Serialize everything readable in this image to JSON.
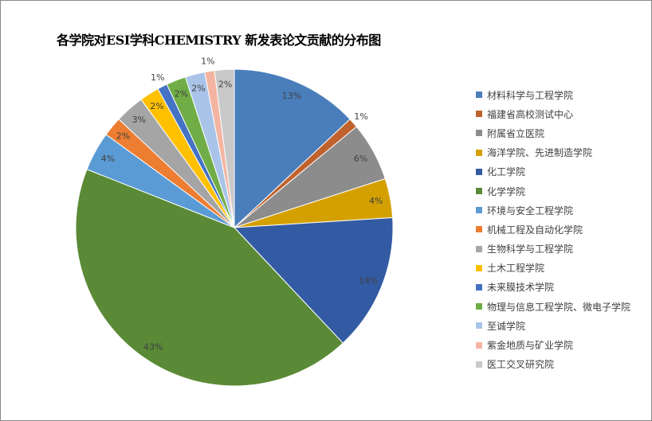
{
  "chart_data": {
    "type": "pie",
    "title": "各学院对ESI学科CHEMISTRY 新发表论文贡献的分布图",
    "legend_position": "right",
    "start_angle": "12 o'clock, clockwise",
    "slices": [
      {
        "label": "材料科学与工程学院",
        "value": 13,
        "display": "13%",
        "color": "#4A7EBB"
      },
      {
        "label": "福建省高校测试中心",
        "value": 1,
        "display": "1%",
        "color": "#C0622D"
      },
      {
        "label": "附属省立医院",
        "value": 6,
        "display": "6%",
        "color": "#8C8C8C"
      },
      {
        "label": "海洋学院、先进制造学院",
        "value": 4,
        "display": "4%",
        "color": "#D4A000"
      },
      {
        "label": "化工学院",
        "value": 14,
        "display": "14%",
        "color": "#335BA3"
      },
      {
        "label": "化学学院",
        "value": 43,
        "display": "43%",
        "color": "#5A8A36"
      },
      {
        "label": "环境与安全工程学院",
        "value": 4,
        "display": "4%",
        "color": "#5B9BD5"
      },
      {
        "label": "机械工程及自动化学院",
        "value": 2,
        "display": "2%",
        "color": "#ED7D31"
      },
      {
        "label": "生物科学与工程学院",
        "value": 3,
        "display": "3%",
        "color": "#A5A5A5"
      },
      {
        "label": "土木工程学院",
        "value": 2,
        "display": "2%",
        "color": "#FFC000"
      },
      {
        "label": "未来膜技术学院",
        "value": 1,
        "display": "1%",
        "color": "#4472C4"
      },
      {
        "label": "物理与信息工程学院、微电子学院",
        "value": 2,
        "display": "2%",
        "color": "#70AD47"
      },
      {
        "label": "至诚学院",
        "value": 2,
        "display": "2%",
        "color": "#A9C4E8"
      },
      {
        "label": "紫金地质与矿业学院",
        "value": 1,
        "display": "1%",
        "color": "#F4B4A2"
      },
      {
        "label": "医工交叉研究院",
        "value": 2,
        "display": "2%",
        "color": "#C9C9C9"
      }
    ]
  }
}
